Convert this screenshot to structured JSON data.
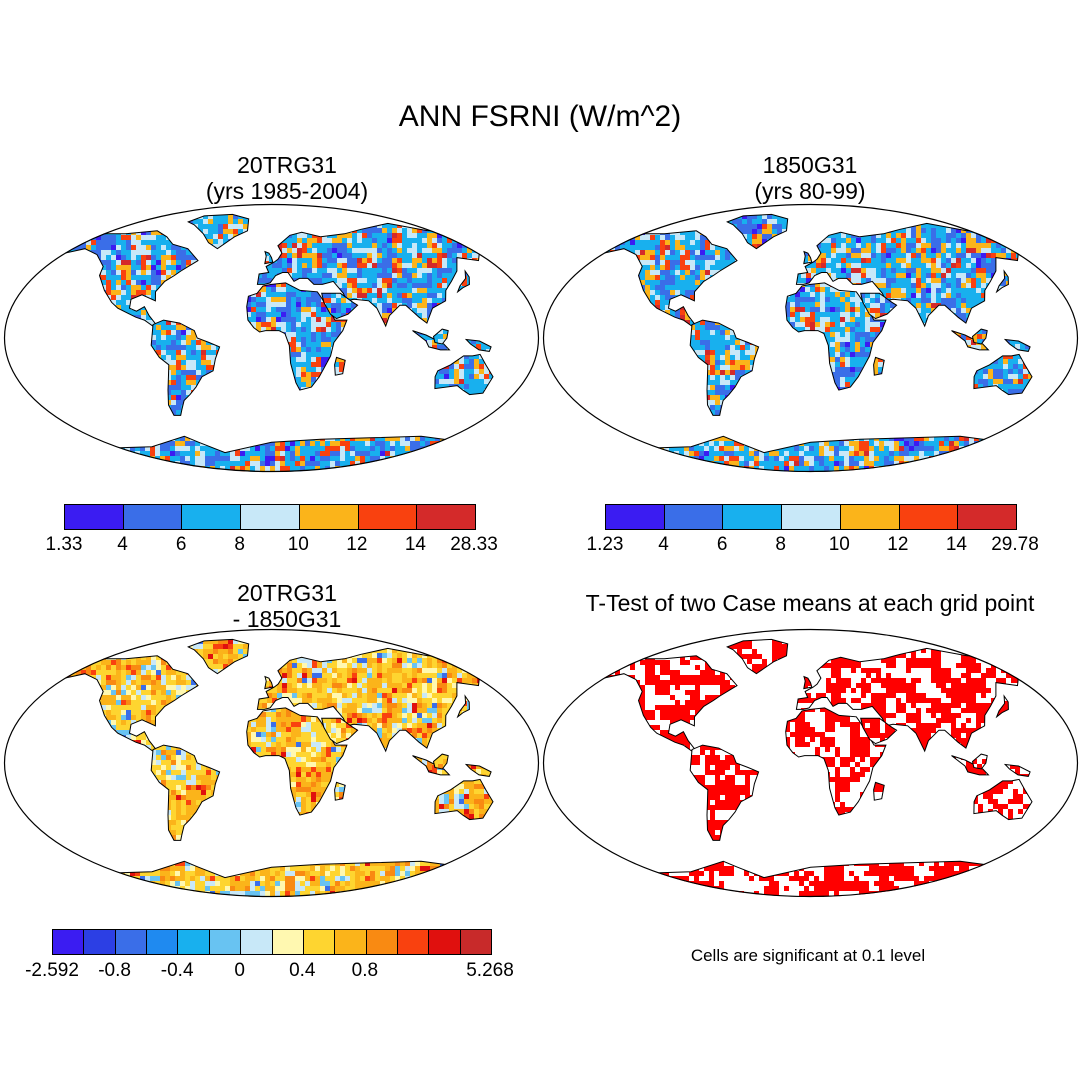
{
  "figure": {
    "title": "ANN FSRNI (W/m^2)"
  },
  "panels": [
    {
      "id": "case1",
      "title_line1": "20TRG31",
      "title_line2": "(yrs 1985-2004)"
    },
    {
      "id": "case2",
      "title_line1": "1850G31",
      "title_line2": "(yrs 80-99)"
    },
    {
      "id": "diff",
      "title_line1": "20TRG31",
      "title_line2": "- 1850G31"
    },
    {
      "id": "ttest",
      "title_line1": "T-Test of two Case means at each grid point",
      "note": "Cells are significant at 0.1 level"
    }
  ],
  "colorbars": [
    {
      "id": "case1",
      "colors": [
        "#3b1cf2",
        "#3a6ee8",
        "#18b0ee",
        "#c8e8f8",
        "#fbb41a",
        "#f9410f",
        "#d42a2a"
      ],
      "labels": [
        "1.33",
        "4",
        "6",
        "8",
        "10",
        "12",
        "14",
        "28.33"
      ]
    },
    {
      "id": "case2",
      "colors": [
        "#3b1cf2",
        "#3a6ee8",
        "#18b0ee",
        "#c8e8f8",
        "#fbb41a",
        "#f9410f",
        "#d42a2a"
      ],
      "labels": [
        "1.23",
        "4",
        "6",
        "8",
        "10",
        "12",
        "14",
        "29.78"
      ]
    },
    {
      "id": "diff",
      "colors": [
        "#3b1cf2",
        "#2c3fe4",
        "#3a6ee8",
        "#1f8af0",
        "#18b0ee",
        "#68c3f2",
        "#c8e8f8",
        "#fff8b0",
        "#fed530",
        "#fbb41a",
        "#f98a12",
        "#f9410f",
        "#e0100e",
        "#c82a2a"
      ],
      "labels": [
        "-2.592",
        "",
        "-0.8",
        "",
        "-0.4",
        "",
        "0",
        "",
        "0.4",
        "",
        "0.8",
        "",
        "",
        "",
        "5.268"
      ]
    }
  ]
}
